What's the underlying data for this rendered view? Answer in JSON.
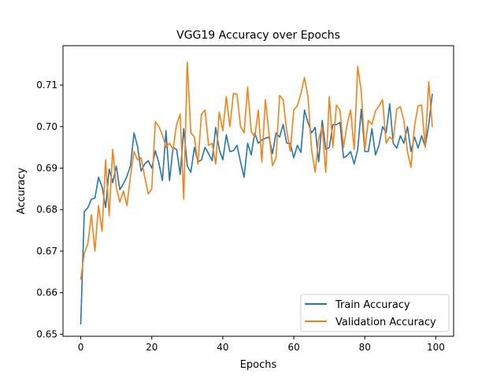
{
  "chart_data": {
    "type": "line",
    "title": "VGG19 Accuracy over Epochs",
    "xlabel": "Epochs",
    "ylabel": "Accuracy",
    "xlim": [
      -5,
      105
    ],
    "ylim": [
      0.6495,
      0.7195
    ],
    "xticks": [
      0,
      20,
      40,
      60,
      80,
      100
    ],
    "xtick_labels": [
      "0",
      "20",
      "40",
      "60",
      "80",
      "100"
    ],
    "yticks": [
      0.65,
      0.66,
      0.67,
      0.68,
      0.69,
      0.7,
      0.71
    ],
    "ytick_labels": [
      "0.65",
      "0.66",
      "0.67",
      "0.68",
      "0.69",
      "0.70",
      "0.71"
    ],
    "grid": false,
    "legend_position": "lower right",
    "x": [
      0,
      1,
      2,
      3,
      4,
      5,
      6,
      7,
      8,
      9,
      10,
      11,
      12,
      13,
      14,
      15,
      16,
      17,
      18,
      19,
      20,
      21,
      22,
      23,
      24,
      25,
      26,
      27,
      28,
      29,
      30,
      31,
      32,
      33,
      34,
      35,
      36,
      37,
      38,
      39,
      40,
      41,
      42,
      43,
      44,
      45,
      46,
      47,
      48,
      49,
      50,
      51,
      52,
      53,
      54,
      55,
      56,
      57,
      58,
      59,
      60,
      61,
      62,
      63,
      64,
      65,
      66,
      67,
      68,
      69,
      70,
      71,
      72,
      73,
      74,
      75,
      76,
      77,
      78,
      79,
      80,
      81,
      82,
      83,
      84,
      85,
      86,
      87,
      88,
      89,
      90,
      91,
      92,
      93,
      94,
      95,
      96,
      97,
      98,
      99
    ],
    "series": [
      {
        "name": "Train Accuracy",
        "color": "#1f77b4",
        "values": [
          0.6525,
          0.6795,
          0.6805,
          0.6825,
          0.6828,
          0.6878,
          0.6855,
          0.6805,
          0.6898,
          0.6865,
          0.6905,
          0.6848,
          0.6862,
          0.688,
          0.6905,
          0.6985,
          0.6952,
          0.6893,
          0.691,
          0.6918,
          0.69,
          0.6942,
          0.6912,
          0.687,
          0.699,
          0.687,
          0.695,
          0.6945,
          0.6885,
          0.6995,
          0.6905,
          0.689,
          0.695,
          0.6915,
          0.692,
          0.695,
          0.6935,
          0.6918,
          0.6998,
          0.6945,
          0.692,
          0.698,
          0.694,
          0.6942,
          0.6955,
          0.6915,
          0.6878,
          0.696,
          0.6932,
          0.6985,
          0.696,
          0.6968,
          0.6972,
          0.6975,
          0.6935,
          0.6985,
          0.6975,
          0.7005,
          0.696,
          0.696,
          0.6925,
          0.6955,
          0.6938,
          0.704,
          0.701,
          0.6985,
          0.6998,
          0.6915,
          0.7015,
          0.6945,
          0.695,
          0.7005,
          0.7005,
          0.701,
          0.6925,
          0.693,
          0.694,
          0.691,
          0.6945,
          0.7042,
          0.694,
          0.694,
          0.6995,
          0.6932,
          0.6955,
          0.7,
          0.6985,
          0.7055,
          0.696,
          0.6948,
          0.6978,
          0.696,
          0.7,
          0.694,
          0.6975,
          0.6948,
          0.6978,
          0.6952,
          0.7005,
          0.7078
        ]
      },
      {
        "name": "Validation Accuracy",
        "color": "#ff7f0e",
        "values": [
          0.6632,
          0.6695,
          0.6718,
          0.6788,
          0.67,
          0.681,
          0.6748,
          0.692,
          0.6785,
          0.6945,
          0.6855,
          0.6818,
          0.6845,
          0.681,
          0.688,
          0.694,
          0.692,
          0.6925,
          0.688,
          0.6838,
          0.685,
          0.7012,
          0.7,
          0.698,
          0.695,
          0.696,
          0.6945,
          0.7005,
          0.703,
          0.6825,
          0.7155,
          0.6985,
          0.6975,
          0.691,
          0.703,
          0.704,
          0.6955,
          0.696,
          0.691,
          0.7035,
          0.699,
          0.7072,
          0.7,
          0.708,
          0.7078,
          0.7,
          0.6985,
          0.7095,
          0.6988,
          0.6975,
          0.704,
          0.6915,
          0.7065,
          0.6985,
          0.6906,
          0.6925,
          0.7075,
          0.7065,
          0.699,
          0.694,
          0.704,
          0.705,
          0.708,
          0.7118,
          0.7072,
          0.6945,
          0.689,
          0.697,
          0.7,
          0.689,
          0.7072,
          0.695,
          0.7052,
          0.704,
          0.695,
          0.7005,
          0.704,
          0.6945,
          0.7145,
          0.7085,
          0.6945,
          0.7015,
          0.7005,
          0.7038,
          0.705,
          0.7065,
          0.696,
          0.6975,
          0.6968,
          0.7042,
          0.7048,
          0.7015,
          0.694,
          0.6902,
          0.7002,
          0.705,
          0.7052,
          0.695,
          0.7108,
          0.7
        ]
      }
    ]
  }
}
